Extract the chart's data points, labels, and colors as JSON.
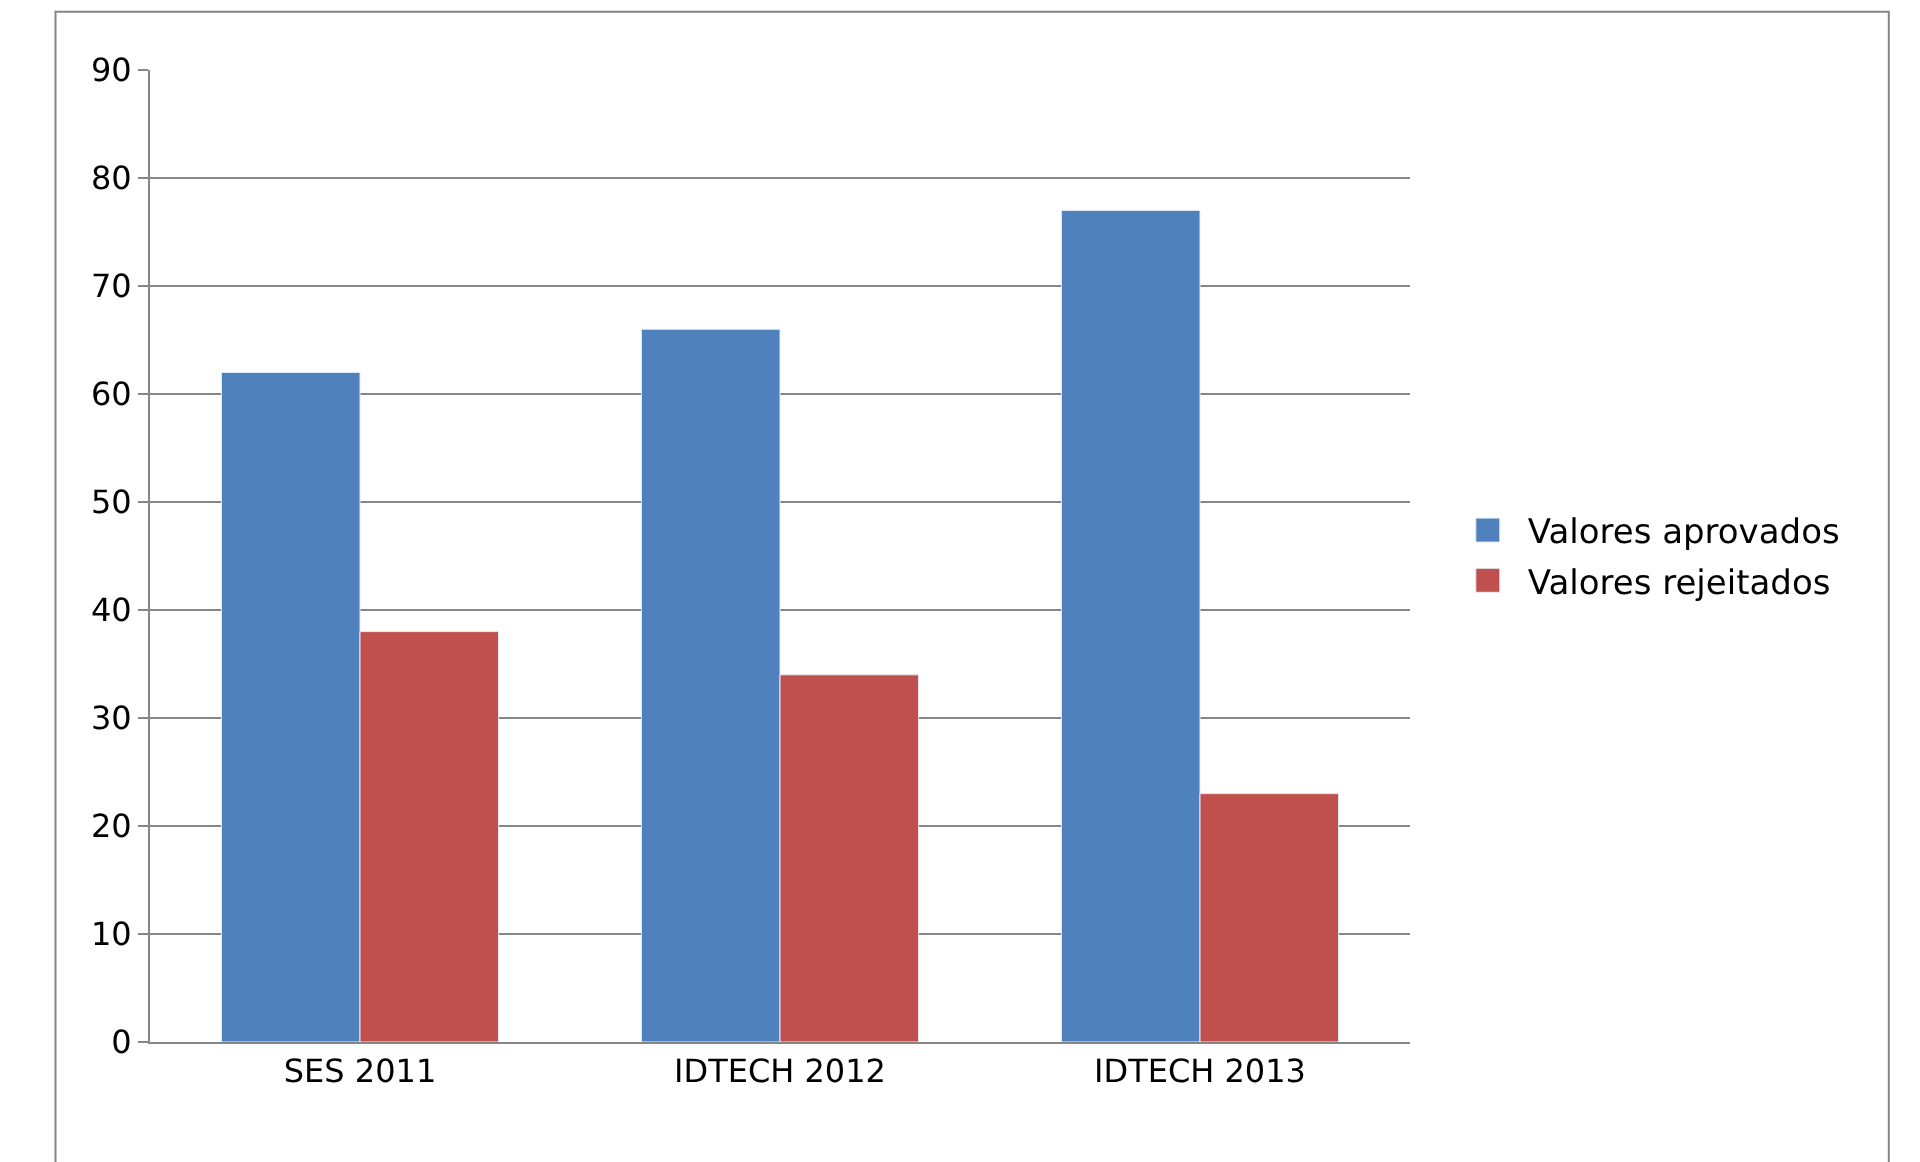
{
  "chart_data": {
    "type": "bar",
    "categories": [
      "SES 2011",
      "IDTECH 2012",
      "IDTECH 2013"
    ],
    "series": [
      {
        "name": "Valores aprovados",
        "color": "#4f81bd",
        "values": [
          62,
          66,
          77
        ]
      },
      {
        "name": "Valores rejeitados",
        "color": "#c0504d",
        "values": [
          38,
          34,
          23
        ]
      }
    ],
    "ylim": [
      0,
      90
    ],
    "yticks": [
      0,
      10,
      20,
      30,
      40,
      50,
      60,
      70,
      80,
      90
    ],
    "grid": "y",
    "legend": "right"
  }
}
